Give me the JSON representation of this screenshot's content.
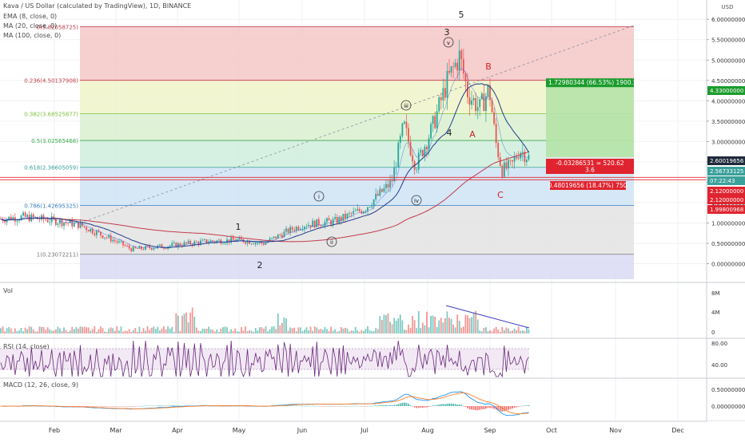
{
  "header": {
    "title": "Kava / US Dollar (calculated by TradingView), 1D, BINANCE",
    "indicators": [
      "EMA (8, close, 0)",
      "MA (20, close, 0)",
      "MA (100, close, 0)"
    ]
  },
  "panes": {
    "volume_title": "Vol",
    "rsi_title": "RSI (14, close)",
    "macd_title": "MACD (12, 26, close, 9)"
  },
  "axes": {
    "price_unit": "USD",
    "price_ticks": [
      "6.00000000",
      "5.50000000",
      "5.00000000",
      "4.50000000",
      "4.00000000",
      "3.50000000",
      "3.00000000",
      "2.50000000",
      "2.00000000",
      "1.50000000",
      "1.00000000",
      "0.50000000",
      "0.00000000"
    ],
    "volume_ticks": [
      "8M",
      "4M",
      "0"
    ],
    "rsi_ticks": [
      "80.00",
      "40.00"
    ],
    "macd_ticks": [
      "0.50000000",
      "0.00000000"
    ],
    "time_ticks": [
      "Feb",
      "Mar",
      "Apr",
      "May",
      "Jun",
      "Jul",
      "Aug",
      "Sep",
      "Oct",
      "Nov",
      "Dec"
    ]
  },
  "price_badges": {
    "current": "2.60019656",
    "ema": "2.56733125",
    "countdown": "07:22:43",
    "ma20": "2.12000000",
    "ma20b": "2.12000000",
    "ma100": "1.99800968",
    "target": "4.33000000"
  },
  "colors": {
    "fib_band_0_236": "#f4c7c7",
    "fib_band_236_382": "#eef3c8",
    "fib_band_382_5": "#d9f0cf",
    "fib_band_5_618": "#cfeedd",
    "fib_band_618_786": "#cfe3f5",
    "fib_band_786_1": "#e3e3e3",
    "fib_band_below": "#d9d9f4",
    "candle_up": "#26a69a",
    "candle_down": "#ef5350",
    "ema": "#2a5bd7",
    "ma20": "#1f3d8c",
    "ma100": "#c23b4a",
    "rsi_line": "#6a2a7a",
    "macd_line": "#2196f3",
    "signal_line": "#ff7f2a",
    "badge_green": "#1b9c2c",
    "badge_red": "#e0242f",
    "trendline": "#8a8fa0",
    "volume_trendline": "#3b3bc0"
  },
  "chart_data": {
    "type": "candlestick",
    "symbol": "Kava / US Dollar",
    "interval": "1D",
    "exchange": "BINANCE",
    "x_range": [
      "Jan",
      "Dec"
    ],
    "y_range": [
      0,
      6
    ],
    "fib_levels": [
      {
        "label": "0(5.82058725)",
        "value": 5.82058725
      },
      {
        "label": "0.236(4.50137908)",
        "value": 4.50137908
      },
      {
        "label": "0.382(3.68525877)",
        "value": 3.68525877
      },
      {
        "label": "0.5(3.02565468)",
        "value": 3.02565468
      },
      {
        "label": "0.618(2.36605059)",
        "value": 2.36605059
      },
      {
        "label": "0.786(1.42695325)",
        "value": 1.42695325
      },
      {
        "label": "1(0.23072211)",
        "value": 0.23072211
      }
    ],
    "key_points": [
      {
        "date": "Jan",
        "price": 1.1
      },
      {
        "date": "Feb",
        "price": 1.0
      },
      {
        "date": "Mar",
        "price": 0.55
      },
      {
        "date": "Mar",
        "price": 0.35
      },
      {
        "date": "Apr",
        "price": 0.45
      },
      {
        "date": "May",
        "price": 0.6
      },
      {
        "date": "May",
        "price": 0.5
      },
      {
        "date": "Jun",
        "price": 0.9
      },
      {
        "date": "Jun",
        "price": 1.1
      },
      {
        "date": "Jul",
        "price": 1.4
      },
      {
        "date": "Jul",
        "price": 3.4
      },
      {
        "date": "Jul",
        "price": 2.5
      },
      {
        "date": "Aug",
        "price": 4.5
      },
      {
        "date": "Aug",
        "price": 5.2
      },
      {
        "date": "Aug",
        "price": 3.5
      },
      {
        "date": "Sep",
        "price": 4.4
      },
      {
        "date": "Sep",
        "price": 2.3
      },
      {
        "date": "Sep",
        "price": 2.8
      },
      {
        "date": "Sep",
        "price": 2.6
      }
    ],
    "wave_labels": [
      "1",
      "2",
      "3",
      "4",
      "5",
      "i",
      "ii",
      "iii",
      "iv",
      "v",
      "A",
      "B",
      "C"
    ],
    "measure_boxes": [
      {
        "text": "1.72980344 (66.53%) 1900.57",
        "kind": "gain"
      },
      {
        "text": "-0.03286531 ≈ 520.62",
        "kind": "loss",
        "sub": "3.6"
      },
      {
        "text": "0.48019656 (18.47%) 750",
        "kind": "loss"
      }
    ]
  }
}
